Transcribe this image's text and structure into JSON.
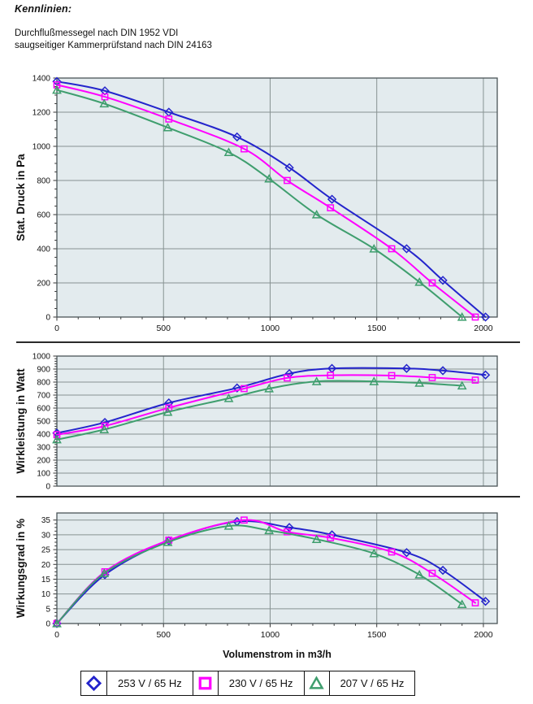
{
  "page": {
    "title": "Kennlinien:",
    "subtitle_line1": "Durchflußmessegel nach DIN 1952 VDI",
    "subtitle_line2": "saugseitiger Kammerprüfstand nach DIN 24163"
  },
  "style": {
    "plot_bg": "#e3ebee",
    "grid_color": "#879292",
    "frame_color": "#4a5458",
    "tick_text_color": "#111111"
  },
  "chart_data": [
    {
      "type": "line",
      "ylabel": "Stat. Druck in Pa",
      "ylim": [
        0,
        1400
      ],
      "y_top_value": 1400,
      "y_ticks": [
        0,
        200,
        400,
        600,
        800,
        1000,
        1200,
        1400
      ],
      "x_ticks": [
        0,
        500,
        1000,
        1500,
        2000
      ],
      "x_right_value": 2065,
      "x_minor_step": 100,
      "grid": true,
      "legend_position": "bottom",
      "series": [
        {
          "name": "253 V / 65 Hz",
          "marker": "diamond",
          "color": "#2424cc",
          "points": [
            [
              0,
              1380
            ],
            [
              225,
              1325
            ],
            [
              525,
              1200
            ],
            [
              845,
              1055
            ],
            [
              1090,
              875
            ],
            [
              1290,
              690
            ],
            [
              1640,
              400
            ],
            [
              1810,
              215
            ],
            [
              2010,
              0
            ]
          ]
        },
        {
          "name": "230 V / 65 Hz",
          "marker": "square",
          "color": "#ff00ff",
          "points": [
            [
              0,
              1360
            ],
            [
              225,
              1290
            ],
            [
              525,
              1160
            ],
            [
              878,
              985
            ],
            [
              1080,
              800
            ],
            [
              1283,
              640
            ],
            [
              1570,
              400
            ],
            [
              1760,
              200
            ],
            [
              1962,
              0
            ]
          ]
        },
        {
          "name": "207 V / 65 Hz",
          "marker": "triangle",
          "color": "#3f9e6e",
          "points": [
            [
              0,
              1330
            ],
            [
              222,
              1250
            ],
            [
              520,
              1110
            ],
            [
              806,
              965
            ],
            [
              995,
              810
            ],
            [
              1218,
              600
            ],
            [
              1487,
              400
            ],
            [
              1700,
              205
            ],
            [
              1900,
              0
            ]
          ]
        }
      ]
    },
    {
      "type": "line",
      "ylabel": "Wirkleistung in Watt",
      "ylim": [
        0,
        1000
      ],
      "y_top_value": 1000,
      "y_ticks": [
        0,
        100,
        200,
        300,
        400,
        500,
        600,
        700,
        800,
        900,
        1000
      ],
      "x_ticks": [
        0,
        500,
        1000,
        1500,
        2000
      ],
      "x_right_value": 2065,
      "x_minor_step": 100,
      "grid": true,
      "series": [
        {
          "name": "253 V / 65 Hz",
          "marker": "diamond",
          "color": "#2424cc",
          "points": [
            [
              0,
              408
            ],
            [
              225,
              490
            ],
            [
              525,
              640
            ],
            [
              845,
              755
            ],
            [
              1090,
              865
            ],
            [
              1290,
              905
            ],
            [
              1640,
              905
            ],
            [
              1810,
              888
            ],
            [
              2010,
              855
            ]
          ]
        },
        {
          "name": "230 V / 65 Hz",
          "marker": "square",
          "color": "#ff00ff",
          "points": [
            [
              0,
              395
            ],
            [
              225,
              462
            ],
            [
              525,
              602
            ],
            [
              878,
              750
            ],
            [
              1080,
              832
            ],
            [
              1283,
              852
            ],
            [
              1570,
              850
            ],
            [
              1760,
              835
            ],
            [
              1962,
              815
            ]
          ]
        },
        {
          "name": "207 V / 65 Hz",
          "marker": "triangle",
          "color": "#3f9e6e",
          "points": [
            [
              0,
              358
            ],
            [
              222,
              435
            ],
            [
              520,
              570
            ],
            [
              806,
              675
            ],
            [
              995,
              750
            ],
            [
              1218,
              805
            ],
            [
              1487,
              805
            ],
            [
              1700,
              793
            ],
            [
              1900,
              772
            ]
          ]
        }
      ]
    },
    {
      "type": "line",
      "ylabel": "Wirkungsgrad in %",
      "xlabel": "Volumenstrom in m3/h",
      "ylim": [
        0,
        35
      ],
      "y_top_value": 37.4,
      "y_ticks": [
        0,
        5,
        10,
        15,
        20,
        25,
        30,
        35
      ],
      "x_ticks": [
        0,
        500,
        1000,
        1500,
        2000
      ],
      "x_right_value": 2065,
      "x_minor_step": 100,
      "grid": true,
      "series": [
        {
          "name": "253 V / 65 Hz",
          "marker": "diamond",
          "color": "#2424cc",
          "points": [
            [
              0,
              0
            ],
            [
              225,
              16.5
            ],
            [
              525,
              28
            ],
            [
              845,
              34.5
            ],
            [
              1090,
              32.5
            ],
            [
              1290,
              30
            ],
            [
              1640,
              24
            ],
            [
              1810,
              18
            ],
            [
              2010,
              7.5
            ]
          ]
        },
        {
          "name": "230 V / 65 Hz",
          "marker": "square",
          "color": "#ff00ff",
          "points": [
            [
              0,
              0
            ],
            [
              225,
              17.5
            ],
            [
              525,
              28.2
            ],
            [
              878,
              35
            ],
            [
              1080,
              31
            ],
            [
              1283,
              29
            ],
            [
              1570,
              24.2
            ],
            [
              1760,
              17
            ],
            [
              1962,
              7
            ]
          ]
        },
        {
          "name": "207 V / 65 Hz",
          "marker": "triangle",
          "color": "#3f9e6e",
          "points": [
            [
              0,
              0
            ],
            [
              222,
              17
            ],
            [
              520,
              27.5
            ],
            [
              806,
              33
            ],
            [
              995,
              31.5
            ],
            [
              1218,
              28.5
            ],
            [
              1487,
              23.7
            ],
            [
              1700,
              16.5
            ],
            [
              1900,
              6.5
            ]
          ]
        }
      ]
    }
  ],
  "legend": {
    "items": [
      {
        "label": "253 V / 65 Hz",
        "marker": "diamond",
        "color": "#2424cc"
      },
      {
        "label": "230 V / 65 Hz",
        "marker": "square",
        "color": "#ff00ff"
      },
      {
        "label": "207 V / 65 Hz",
        "marker": "triangle",
        "color": "#3f9e6e"
      }
    ]
  }
}
